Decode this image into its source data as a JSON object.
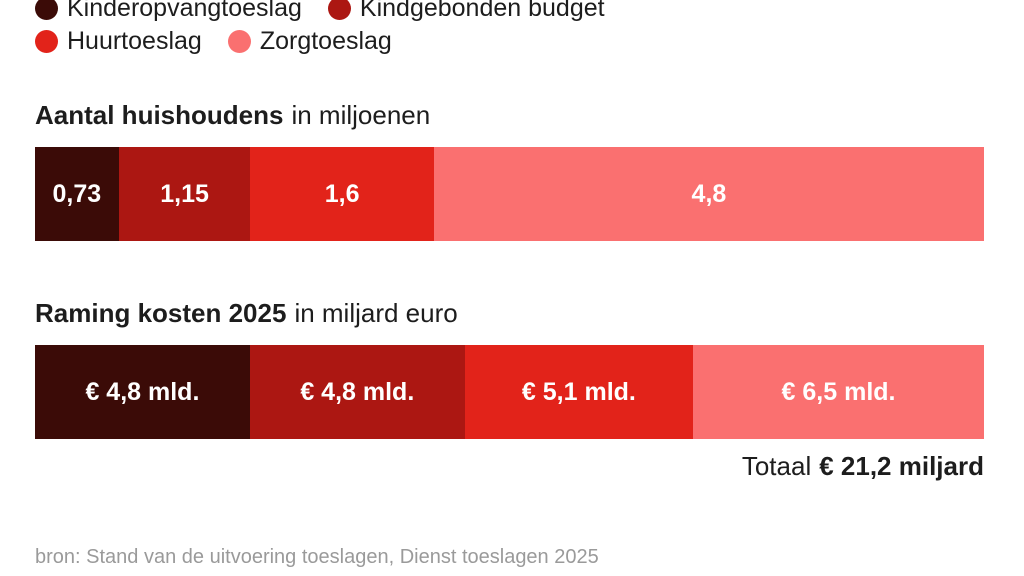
{
  "legend": {
    "rows": [
      [
        0,
        1
      ],
      [
        2,
        3
      ]
    ]
  },
  "chart_data": [
    {
      "type": "bar",
      "variant": "proportional-stacked-horizontal",
      "title": "Aantal huishoudens",
      "subtitle": "in miljoenen",
      "categories": [
        "Kinderopvangtoeslag",
        "Kindgebonden budget",
        "Huurtoeslag",
        "Zorgtoeslag"
      ],
      "values": [
        0.73,
        1.15,
        1.6,
        4.8
      ],
      "labels": [
        "0,73",
        "1,15",
        "1,6",
        "4,8"
      ],
      "colors": [
        "#3B0B07",
        "#AC1712",
        "#E2231A",
        "#FA7070"
      ],
      "legend_position": "top",
      "grid": false,
      "axes": false
    },
    {
      "type": "bar",
      "variant": "proportional-stacked-horizontal",
      "title": "Raming kosten 2025",
      "subtitle": "in miljard euro",
      "categories": [
        "Kinderopvangtoeslag",
        "Kindgebonden budget",
        "Huurtoeslag",
        "Zorgtoeslag"
      ],
      "values": [
        4.8,
        4.8,
        5.1,
        6.5
      ],
      "labels": [
        "€ 4,8 mld.",
        "€ 4,8 mld.",
        "€ 5,1 mld.",
        "€ 6,5 mld."
      ],
      "colors": [
        "#3B0B07",
        "#AC1712",
        "#E2231A",
        "#FA7070"
      ],
      "total": {
        "prefix": "Totaal",
        "value": "€ 21,2 miljard"
      },
      "grid": false,
      "axes": false
    }
  ],
  "source": "bron: Stand van de uitvoering toeslagen, Dienst toeslagen 2025"
}
